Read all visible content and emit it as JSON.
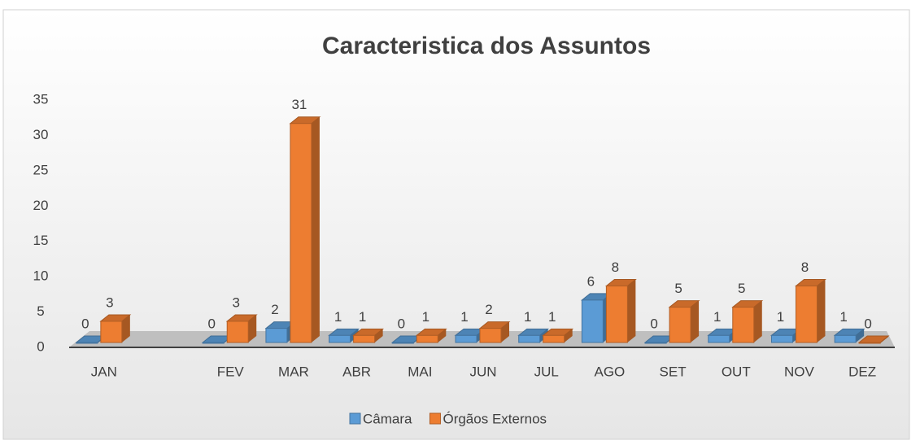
{
  "chart_data": {
    "type": "bar3d",
    "title": "Caracteristica dos Assuntos",
    "categories": [
      "JAN",
      null,
      "FEV",
      "MAR",
      "ABR",
      "MAI",
      "JUN",
      "JUL",
      "AGO",
      "SET",
      "OUT",
      "NOV",
      "DEZ"
    ],
    "series": [
      {
        "name": "Câmara",
        "color": "#5b9bd5",
        "values": [
          0,
          null,
          0,
          2,
          1,
          0,
          1,
          1,
          6,
          0,
          1,
          1,
          1
        ]
      },
      {
        "name": "Órgãos Externos",
        "color": "#ed7d31",
        "values": [
          3,
          null,
          3,
          31,
          1,
          1,
          2,
          1,
          8,
          5,
          5,
          8,
          0
        ]
      }
    ],
    "ylim": [
      0,
      35
    ],
    "yticks": [
      0,
      5,
      10,
      15,
      20,
      25,
      30,
      35
    ],
    "grid": false,
    "legend": "bottom"
  }
}
